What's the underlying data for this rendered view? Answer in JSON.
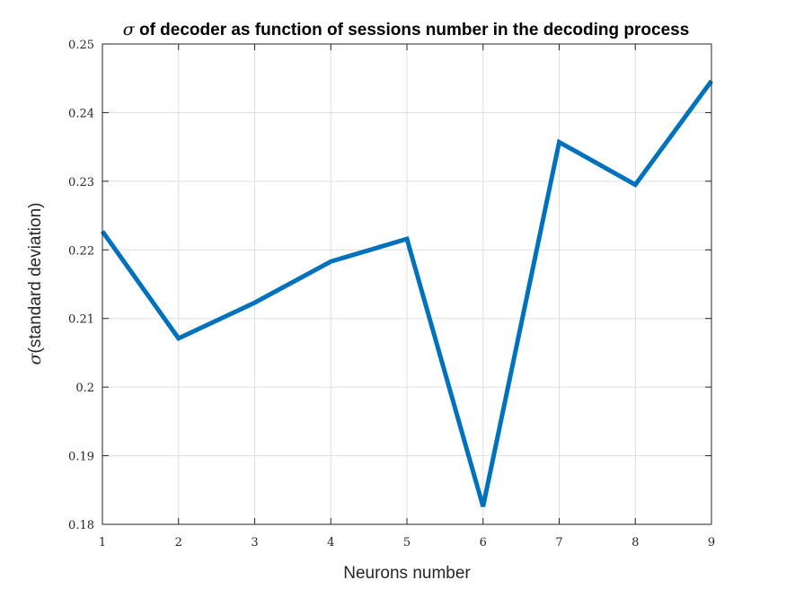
{
  "chart_data": {
    "type": "line",
    "title_symbol": "σ",
    "title_text": " of decoder as function of sessions number in the decoding process",
    "xlabel": "Neurons number",
    "ylabel_symbol": "σ",
    "ylabel_text": "(standard deviation)",
    "x": [
      1,
      2,
      3,
      4,
      5,
      6,
      7,
      8,
      9
    ],
    "series": [
      {
        "values": [
          0.2227,
          0.2071,
          0.2123,
          0.2183,
          0.2216,
          0.1826,
          0.2357,
          0.2295,
          0.2446
        ],
        "color": "#0072bd"
      }
    ],
    "xlim": [
      1,
      9
    ],
    "ylim": [
      0.18,
      0.25
    ],
    "xticks": [
      1,
      2,
      3,
      4,
      5,
      6,
      7,
      8,
      9
    ],
    "xtick_labels": [
      "1",
      "2",
      "3",
      "4",
      "5",
      "6",
      "7",
      "8",
      "9"
    ],
    "yticks": [
      0.18,
      0.19,
      0.2,
      0.21,
      0.22,
      0.23,
      0.24,
      0.25
    ],
    "ytick_labels": [
      "0.18",
      "0.19",
      "0.2",
      "0.21",
      "0.22",
      "0.23",
      "0.24",
      "0.25"
    ],
    "grid": true,
    "legend": "none"
  }
}
